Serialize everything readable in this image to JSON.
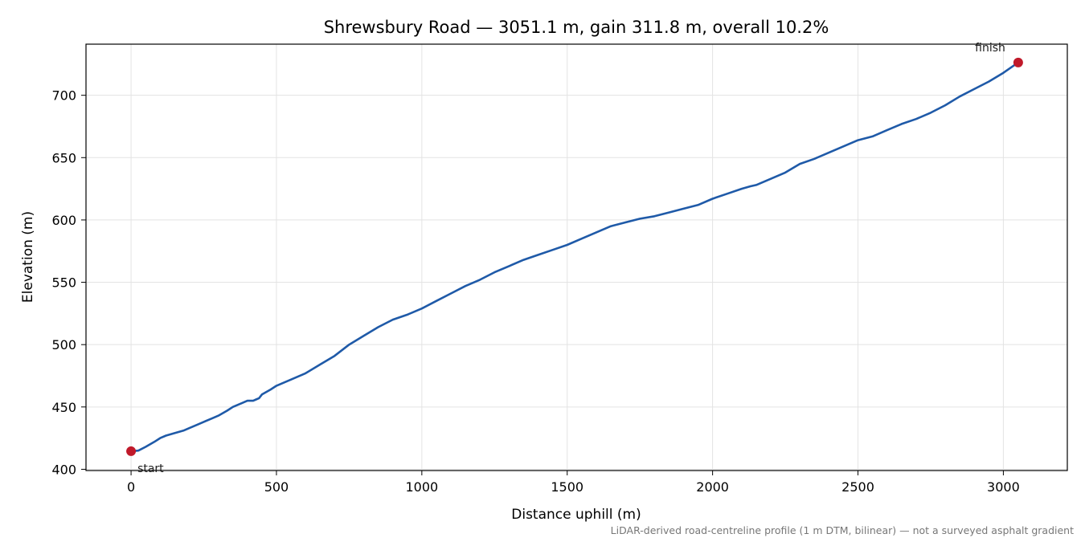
{
  "chart_data": {
    "type": "line",
    "title": "Shrewsbury Road — 3051.1 m, gain 311.8 m, overall 10.2%",
    "xlabel": "Distance uphill (m)",
    "ylabel": "Elevation (m)",
    "xlim": [
      -155,
      3220
    ],
    "ylim": [
      399,
      741
    ],
    "xticks": [
      0,
      500,
      1000,
      1500,
      2000,
      2500,
      3000
    ],
    "yticks": [
      400,
      450,
      500,
      550,
      600,
      650,
      700
    ],
    "grid": true,
    "line_color": "#1f5aa8",
    "marker_color": "#c0192a",
    "series": [
      {
        "x": [
          0,
          25,
          50,
          80,
          100,
          120,
          150,
          180,
          200,
          230,
          250,
          280,
          300,
          330,
          350,
          380,
          400,
          420,
          430,
          440,
          450,
          480,
          500,
          550,
          600,
          650,
          700,
          750,
          800,
          850,
          900,
          950,
          1000,
          1050,
          1100,
          1150,
          1200,
          1250,
          1300,
          1350,
          1400,
          1450,
          1500,
          1550,
          1600,
          1650,
          1700,
          1750,
          1800,
          1850,
          1900,
          1950,
          2000,
          2050,
          2100,
          2130,
          2150,
          2200,
          2250,
          2300,
          2350,
          2400,
          2450,
          2500,
          2550,
          2600,
          2650,
          2700,
          2750,
          2800,
          2850,
          2900,
          2950,
          3000,
          3051.1
        ],
        "y": [
          414.5,
          415,
          418,
          422,
          425,
          427,
          429,
          431,
          433,
          436,
          438,
          441,
          443,
          447,
          450,
          453,
          455,
          455,
          456,
          457,
          460,
          464,
          467,
          472,
          477,
          484,
          491,
          500,
          507,
          514,
          520,
          524,
          529,
          535,
          541,
          547,
          552,
          558,
          563,
          568,
          572,
          576,
          580,
          585,
          590,
          595,
          598,
          601,
          603,
          606,
          609,
          612,
          617,
          621,
          625,
          627,
          628,
          633,
          638,
          645,
          649,
          654,
          659,
          664,
          667,
          672,
          677,
          681,
          686,
          692,
          699,
          705,
          711,
          718,
          726.3
        ]
      }
    ],
    "annotations": [
      {
        "label": "start",
        "x": 0,
        "y": 414.5
      },
      {
        "label": "finish",
        "x": 3051.1,
        "y": 726.3
      }
    ],
    "footnote": "LiDAR-derived road-centreline profile (1 m DTM, bilinear) — not a surveyed asphalt gradient"
  }
}
